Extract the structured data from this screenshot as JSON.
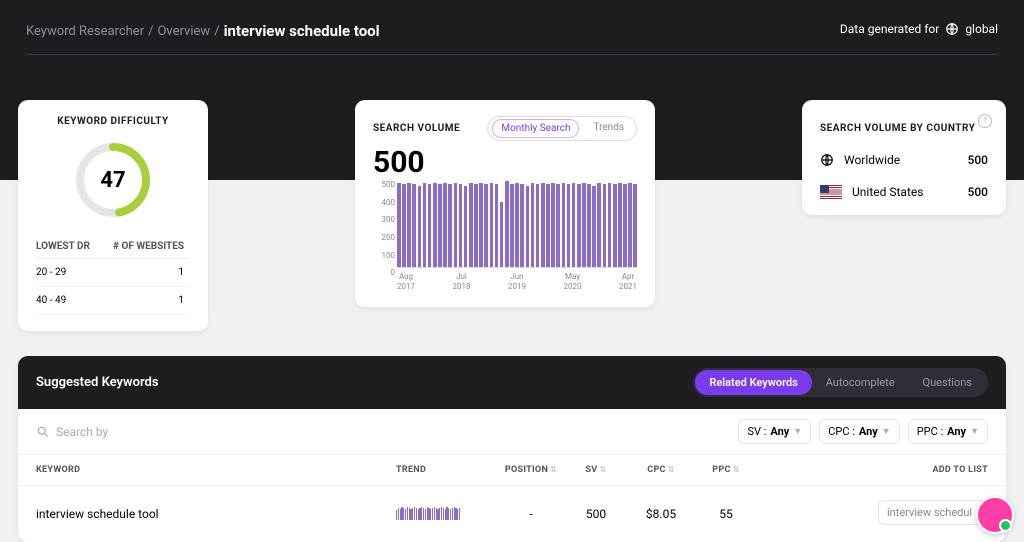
{
  "breadcrumb": {
    "a": "Keyword Researcher",
    "b": "Overview",
    "current": "interview schedule tool"
  },
  "generated": {
    "label": "Data generated for",
    "scope": "global"
  },
  "difficulty": {
    "title": "KEYWORD DIFFICULTY",
    "score": "47",
    "ring_pct": 0.47,
    "ring_color": "#a8d03a",
    "ring_bg": "#e6e6ea",
    "cols": {
      "a": "LOWEST DR",
      "b": "# OF WEBSITES"
    },
    "rows": [
      {
        "range": "20 - 29",
        "count": "1"
      },
      {
        "range": "40 - 49",
        "count": "1"
      }
    ]
  },
  "volume": {
    "title": "SEARCH VOLUME",
    "seg_a": "Monthly Search",
    "seg_b": "Trends",
    "value": "500",
    "chart": {
      "type": "bar",
      "bar_color": "#8b6cc7",
      "ylim": [
        0,
        500
      ],
      "yticks": [
        "0",
        "100",
        "200",
        "300",
        "400",
        "500"
      ],
      "xticks": [
        {
          "m": "Aug",
          "y": "2017"
        },
        {
          "m": "Jul",
          "y": "2018"
        },
        {
          "m": "Jun",
          "y": "2019"
        },
        {
          "m": "May",
          "y": "2020"
        },
        {
          "m": "Apr",
          "y": "2021"
        }
      ],
      "bars": [
        480,
        470,
        480,
        470,
        460,
        480,
        470,
        480,
        470,
        480,
        470,
        480,
        470,
        460,
        480,
        470,
        480,
        470,
        480,
        470,
        370,
        490,
        470,
        480,
        470,
        460,
        480,
        470,
        480,
        470,
        480,
        470,
        480,
        470,
        480,
        470,
        480,
        470,
        460,
        480,
        470,
        480,
        470,
        480,
        470,
        480,
        470
      ]
    }
  },
  "bycountry": {
    "title": "SEARCH VOLUME BY COUNTRY",
    "rows": [
      {
        "icon": "globe",
        "name": "Worldwide",
        "val": "500"
      },
      {
        "icon": "us",
        "name": "United States",
        "val": "500"
      }
    ]
  },
  "suggested": {
    "title": "Suggested Keywords",
    "tabs": {
      "a": "Related Keywords",
      "b": "Autocomplete",
      "c": "Questions"
    },
    "search_placeholder": "Search by",
    "filters": {
      "sv": {
        "l": "SV :",
        "v": "Any"
      },
      "cpc": {
        "l": "CPC :",
        "v": "Any"
      },
      "ppc": {
        "l": "PPC :",
        "v": "Any"
      }
    },
    "columns": {
      "kw": "KEYWORD",
      "tr": "TREND",
      "pos": "POSITION",
      "sv": "SV",
      "cpc": "CPC",
      "ppc": "PPC",
      "add": "ADD TO LIST"
    },
    "row": {
      "keyword": "interview schedule tool",
      "position": "-",
      "sv": "500",
      "cpc": "$8.05",
      "ppc": "55",
      "add_placeholder": "interview schedul",
      "spark": [
        10,
        12,
        11,
        13,
        12,
        11,
        13,
        12,
        11,
        12,
        13,
        12,
        11,
        12,
        13,
        12,
        11,
        13,
        12,
        11,
        12,
        13,
        12,
        11,
        12,
        13,
        12,
        11,
        13,
        12,
        11,
        12,
        13,
        12,
        11,
        12
      ]
    }
  }
}
